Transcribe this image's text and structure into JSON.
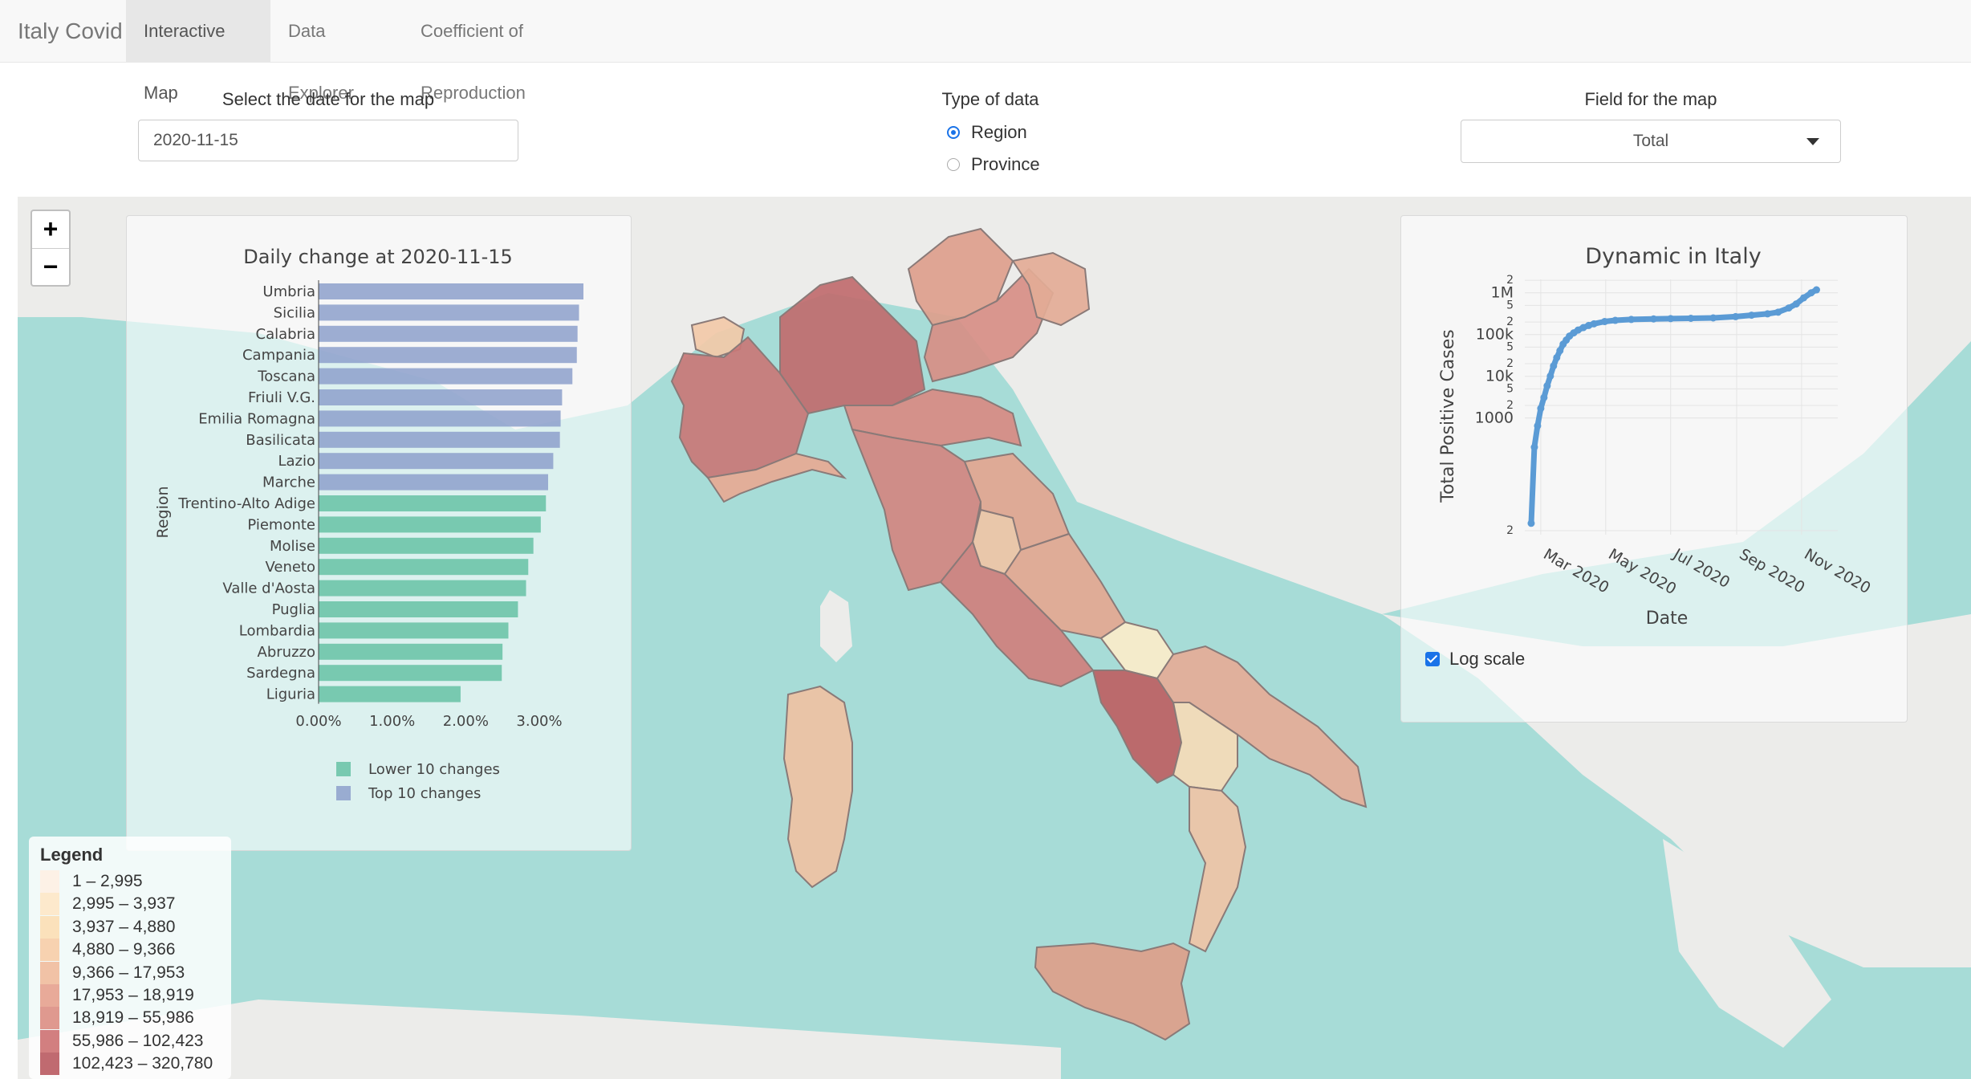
{
  "nav": {
    "brand": "Italy Covid",
    "tabs": [
      {
        "label": "Interactive Map",
        "active": true
      },
      {
        "label": "Data Explorer",
        "active": false
      },
      {
        "label": "Coefficient of Reproduction",
        "active": false
      }
    ]
  },
  "controls": {
    "date_label": "Select the date for the map",
    "date_value": "2020-11-15",
    "type_label": "Type of data",
    "type_options": [
      {
        "label": "Region",
        "selected": true
      },
      {
        "label": "Province",
        "selected": false
      }
    ],
    "field_label": "Field for the map",
    "field_value": "Total"
  },
  "map": {
    "zoom_in": "+",
    "zoom_out": "−",
    "colors": {
      "sea": "#a7dcd7",
      "land": "#ececea"
    },
    "regions": [
      {
        "name": "Valle d'Aosta",
        "color": "#f2c9a8"
      },
      {
        "name": "Piemonte",
        "color": "#c97777"
      },
      {
        "name": "Lombardia",
        "color": "#c06b6e"
      },
      {
        "name": "Liguria",
        "color": "#e7a994"
      },
      {
        "name": "Trentino-Alto Adige",
        "color": "#dd9e8c"
      },
      {
        "name": "Veneto",
        "color": "#d78e86"
      },
      {
        "name": "Friuli V.G.",
        "color": "#e3ab96"
      },
      {
        "name": "Emilia Romagna",
        "color": "#d88a83"
      },
      {
        "name": "Toscana",
        "color": "#d28681"
      },
      {
        "name": "Umbria",
        "color": "#efc4a6"
      },
      {
        "name": "Marche",
        "color": "#e3a590"
      },
      {
        "name": "Lazio",
        "color": "#cf7f7d"
      },
      {
        "name": "Abruzzo",
        "color": "#e4a791"
      },
      {
        "name": "Molise",
        "color": "#fbecca"
      },
      {
        "name": "Campania",
        "color": "#bd5f63"
      },
      {
        "name": "Puglia",
        "color": "#e5ab97"
      },
      {
        "name": "Basilicata",
        "color": "#f5dab7"
      },
      {
        "name": "Calabria",
        "color": "#efc3a6"
      },
      {
        "name": "Sicilia",
        "color": "#dd9e8a"
      },
      {
        "name": "Sardegna",
        "color": "#efc1a3"
      }
    ]
  },
  "bar_chart": {
    "chart_data": {
      "type": "bar",
      "orientation": "horizontal",
      "title": "Daily change at 2020-11-15",
      "ylabel": "Region",
      "xlabel": "",
      "x_ticks": [
        "0.00%",
        "1.00%",
        "2.00%",
        "3.00%"
      ],
      "xlim": [
        0,
        0.036
      ],
      "categories": [
        "Umbria",
        "Sicilia",
        "Calabria",
        "Campania",
        "Toscana",
        "Friuli V.G.",
        "Emilia Romagna",
        "Basilicata",
        "Lazio",
        "Marche",
        "Trentino-Alto Adige",
        "Piemonte",
        "Molise",
        "Veneto",
        "Valle d'Aosta",
        "Puglia",
        "Lombardia",
        "Abruzzo",
        "Sardegna",
        "Liguria"
      ],
      "values": [
        0.036,
        0.0354,
        0.0352,
        0.0351,
        0.0345,
        0.0331,
        0.0329,
        0.0328,
        0.0319,
        0.0312,
        0.0309,
        0.0302,
        0.0292,
        0.0285,
        0.0282,
        0.0271,
        0.0258,
        0.025,
        0.0249,
        0.0193
      ],
      "groups": [
        "Top 10 changes",
        "Top 10 changes",
        "Top 10 changes",
        "Top 10 changes",
        "Top 10 changes",
        "Top 10 changes",
        "Top 10 changes",
        "Top 10 changes",
        "Top 10 changes",
        "Top 10 changes",
        "Lower 10 changes",
        "Lower 10 changes",
        "Lower 10 changes",
        "Lower 10 changes",
        "Lower 10 changes",
        "Lower 10 changes",
        "Lower 10 changes",
        "Lower 10 changes",
        "Lower 10 changes",
        "Lower 10 changes"
      ],
      "legend": [
        {
          "name": "Lower 10 changes",
          "color": "#66c2a5"
        },
        {
          "name": "Top 10 changes",
          "color": "#8da0cb"
        }
      ],
      "legend_position": "bottom"
    }
  },
  "line_chart": {
    "chart_data": {
      "type": "line",
      "title": "Dynamic in Italy",
      "xlabel": "Date",
      "ylabel": "Total Positive Cases",
      "y_scale": "log",
      "ylim": [
        1.6,
        2100000
      ],
      "x_ticks": [
        "Mar 2020",
        "May 2020",
        "Jul 2020",
        "Sep 2020",
        "Nov 2020"
      ],
      "y_ticks": [
        "2",
        "1000",
        "5",
        "2",
        "10k",
        "5",
        "2",
        "100k",
        "5",
        "2",
        "1M",
        "2"
      ],
      "color": "#5b9bd5",
      "x": [
        "2020-02-21",
        "2020-02-24",
        "2020-02-27",
        "2020-03-01",
        "2020-03-04",
        "2020-03-07",
        "2020-03-10",
        "2020-03-13",
        "2020-03-16",
        "2020-03-19",
        "2020-03-22",
        "2020-03-25",
        "2020-03-28",
        "2020-04-01",
        "2020-04-05",
        "2020-04-10",
        "2020-04-15",
        "2020-04-20",
        "2020-04-30",
        "2020-05-10",
        "2020-05-25",
        "2020-06-15",
        "2020-07-01",
        "2020-07-20",
        "2020-08-10",
        "2020-08-31",
        "2020-09-15",
        "2020-09-30",
        "2020-10-10",
        "2020-10-20",
        "2020-10-27",
        "2020-11-03",
        "2020-11-10",
        "2020-11-15"
      ],
      "y": [
        3,
        200,
        650,
        1700,
        3100,
        5900,
        10100,
        17700,
        28000,
        41000,
        59000,
        74000,
        92000,
        110000,
        128000,
        147000,
        165000,
        181000,
        205000,
        219000,
        230000,
        237000,
        241000,
        245000,
        251000,
        269000,
        291000,
        314000,
        344000,
        434000,
        542000,
        759000,
        1000000,
        1180000
      ]
    }
  },
  "log_scale": {
    "label": "Log scale",
    "checked": true
  },
  "legend": {
    "title": "Legend",
    "items": [
      {
        "label": "1 – 2,995",
        "color": "#fdf1e6"
      },
      {
        "label": "2,995 – 3,937",
        "color": "#fde9cc"
      },
      {
        "label": "3,937 – 4,880",
        "color": "#fbe1bb"
      },
      {
        "label": "4,880 – 9,366",
        "color": "#f7d2b0"
      },
      {
        "label": "9,366 – 17,953",
        "color": "#f1c2a6"
      },
      {
        "label": "17,953 – 18,919",
        "color": "#e8aa99"
      },
      {
        "label": "18,919 – 55,986",
        "color": "#df998f"
      },
      {
        "label": "55,986 – 102,423",
        "color": "#d27f80"
      },
      {
        "label": "102,423 – 320,780",
        "color": "#c06a70"
      }
    ]
  }
}
